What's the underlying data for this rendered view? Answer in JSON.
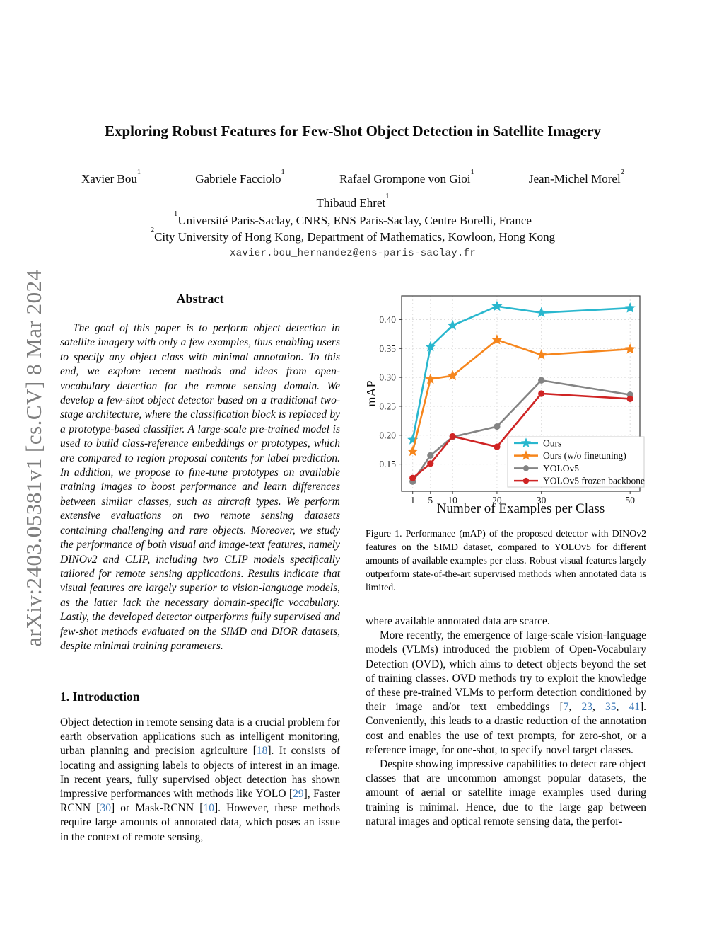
{
  "arxiv_stamp": "arXiv:2403.05381v1  [cs.CV]  8 Mar 2024",
  "header": {
    "title": "Exploring Robust Features for Few-Shot Object Detection in Satellite Imagery",
    "authors": [
      {
        "name": "Xavier Bou",
        "sup": "1"
      },
      {
        "name": "Gabriele Facciolo",
        "sup": "1"
      },
      {
        "name": "Rafael Grompone von Gioi",
        "sup": "1"
      },
      {
        "name": "Jean-Michel Morel",
        "sup": "2"
      }
    ],
    "author_row2": {
      "name": "Thibaud Ehret",
      "sup": "1"
    },
    "affiliations": [
      {
        "sup": "1",
        "text": "Université Paris-Saclay, CNRS, ENS Paris-Saclay, Centre Borelli, France"
      },
      {
        "sup": "2",
        "text": "City University of Hong Kong, Department of Mathematics, Kowloon, Hong Kong"
      }
    ],
    "email": "xavier.bou_hernandez@ens-paris-saclay.fr"
  },
  "left_column": {
    "abstract_title": "Abstract",
    "abstract_text": "The goal of this paper is to perform object detection in satellite imagery with only a few examples, thus enabling users to specify any object class with minimal annotation. To this end, we explore recent methods and ideas from open-vocabulary detection for the remote sensing domain. We develop a few-shot object detector based on a traditional two-stage architecture, where the classification block is replaced by a prototype-based classifier. A large-scale pre-trained model is used to build class-reference embeddings or prototypes, which are compared to region proposal contents for label prediction. In addition, we propose to fine-tune prototypes on available training images to boost performance and learn differences between similar classes, such as aircraft types. We perform extensive evaluations on two remote sensing datasets containing challenging and rare objects. Moreover, we study the performance of both visual and image-text features, namely DINOv2 and CLIP, including two CLIP models specifically tailored for remote sensing applications. Results indicate that visual features are largely superior to vision-language models, as the latter lack the necessary domain-specific vocabulary. Lastly, the developed detector outperforms fully supervised and few-shot methods evaluated on the SIMD and DIOR datasets, despite minimal training parameters.",
    "section1_heading": "1. Introduction",
    "intro_paragraph": "Object detection in remote sensing data is a crucial problem for earth observation applications such as intelligent monitoring, urban planning and precision agriculture [18]. It consists of locating and assigning labels to objects of interest in an image. In recent years, fully supervised object detection has shown impressive performances with methods like YOLO [29], Faster RCNN [30] or Mask-RCNN [10]. However, these methods require large amounts of annotated data, which poses an issue in the context of remote sensing,"
  },
  "right_column": {
    "figure_caption": "Figure 1. Performance (mAP) of the proposed detector with DINOv2 features on the SIMD dataset, compared to YOLOv5 for different amounts of available examples per class. Robust visual features largely outperform state-of-the-art supervised methods when annotated data is limited.",
    "paragraph1": "where available annotated data are scarce.",
    "paragraph2": "More recently, the emergence of large-scale vision-language models (VLMs) introduced the problem of Open-Vocabulary Detection (OVD), which aims to detect objects beyond the set of training classes. OVD methods try to exploit the knowledge of these pre-trained VLMs to perform detection conditioned by their image and/or text embeddings [7, 23, 35, 41]. Conveniently, this leads to a drastic reduction of the annotation cost and enables the use of text prompts, for zero-shot, or a reference image, for one-shot, to specify novel target classes.",
    "paragraph3": "Despite showing impressive capabilities to detect rare object classes that are uncommon amongst popular datasets, the amount of aerial or satellite image examples used during training is minimal. Hence, due to the large gap between natural images and optical remote sensing data, the perfor-"
  },
  "chart_data": {
    "type": "line",
    "title": "",
    "xlabel": "Number of Examples per Class",
    "ylabel": "mAP",
    "x": [
      1,
      5,
      10,
      20,
      30,
      50
    ],
    "series": [
      {
        "name": "Ours",
        "color": "#29b7ce",
        "marker": "star",
        "values": [
          0.192,
          0.353,
          0.39,
          0.423,
          0.412,
          0.42
        ]
      },
      {
        "name": "Ours (w/o finetuning)",
        "color": "#f6861d",
        "marker": "star",
        "values": [
          0.172,
          0.297,
          0.303,
          0.365,
          0.339,
          0.349
        ]
      },
      {
        "name": "YOLOv5",
        "color": "#848484",
        "marker": "circle",
        "values": [
          0.12,
          0.165,
          0.197,
          0.215,
          0.295,
          0.27
        ]
      },
      {
        "name": "YOLOv5 frozen backbone",
        "color": "#cf2424",
        "marker": "circle",
        "values": [
          0.126,
          0.151,
          0.198,
          0.18,
          0.272,
          0.263
        ]
      }
    ],
    "xticks": [
      1,
      5,
      10,
      20,
      30,
      50
    ],
    "yticks": [
      0.15,
      0.2,
      0.25,
      0.3,
      0.35,
      0.4
    ],
    "xlim": [
      -1.5,
      52.2
    ],
    "ylim": [
      0.103,
      0.441
    ],
    "grid": true,
    "grid_style": "dashed",
    "legend_position": "lower right"
  }
}
